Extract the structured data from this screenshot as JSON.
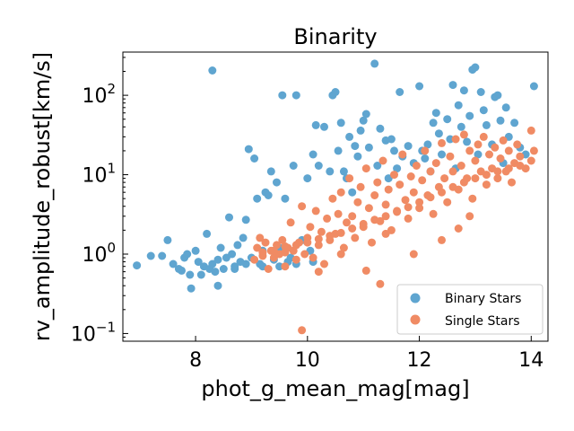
{
  "chart_data": {
    "type": "scatter",
    "title": "Binarity",
    "xlabel": "phot_g_mean_mag[mag]",
    "ylabel": "rv_amplitude_robust[km/s]",
    "xlim": [
      6.7,
      14.3
    ],
    "ylim": [
      0.08,
      350
    ],
    "yscale": "log",
    "grid": false,
    "legend_position": "lower-right",
    "xticks": [
      {
        "value": 8,
        "label": "8"
      },
      {
        "value": 10,
        "label": "10"
      },
      {
        "value": 12,
        "label": "12"
      },
      {
        "value": 14,
        "label": "14"
      }
    ],
    "yticks": [
      {
        "value": 0.1,
        "base": "10",
        "exp": "−1"
      },
      {
        "value": 1,
        "base": "10",
        "exp": "0"
      },
      {
        "value": 10,
        "base": "10",
        "exp": "1"
      },
      {
        "value": 100,
        "base": "10",
        "exp": "2"
      }
    ],
    "series": [
      {
        "name": "Binary Stars",
        "color": "#5fa5d0",
        "points": [
          [
            6.95,
            0.72
          ],
          [
            7.2,
            0.95
          ],
          [
            7.4,
            0.95
          ],
          [
            7.5,
            1.5
          ],
          [
            7.6,
            0.75
          ],
          [
            7.7,
            0.65
          ],
          [
            7.75,
            0.62
          ],
          [
            7.8,
            0.9
          ],
          [
            7.85,
            1.0
          ],
          [
            7.9,
            0.55
          ],
          [
            7.92,
            0.37
          ],
          [
            8.0,
            1.1
          ],
          [
            8.05,
            0.8
          ],
          [
            8.1,
            0.55
          ],
          [
            8.15,
            0.7
          ],
          [
            8.2,
            1.8
          ],
          [
            8.25,
            0.65
          ],
          [
            8.3,
            0.75
          ],
          [
            8.3,
            205
          ],
          [
            8.35,
            0.6
          ],
          [
            8.4,
            0.85
          ],
          [
            8.4,
            0.4
          ],
          [
            8.45,
            1.2
          ],
          [
            8.5,
            0.65
          ],
          [
            8.55,
            0.9
          ],
          [
            8.6,
            2.9
          ],
          [
            8.65,
            1.0
          ],
          [
            8.7,
            0.7
          ],
          [
            8.75,
            1.3
          ],
          [
            8.8,
            0.8
          ],
          [
            8.85,
            1.6
          ],
          [
            8.9,
            2.7
          ],
          [
            8.95,
            21
          ],
          [
            9.0,
            0.9
          ],
          [
            9.05,
            16
          ],
          [
            9.1,
            5.0
          ],
          [
            9.15,
            0.75
          ],
          [
            9.2,
            1.1
          ],
          [
            9.25,
            6.0
          ],
          [
            9.3,
            5.5
          ],
          [
            9.35,
            11
          ],
          [
            9.4,
            0.85
          ],
          [
            9.45,
            8.0
          ],
          [
            9.5,
            1.2
          ],
          [
            9.55,
            100
          ],
          [
            9.6,
            5.0
          ],
          [
            9.65,
            0.8
          ],
          [
            9.7,
            0.9
          ],
          [
            9.75,
            13
          ],
          [
            9.8,
            100
          ],
          [
            9.9,
            1.5
          ],
          [
            10.0,
            9.0
          ],
          [
            10.05,
            1.1
          ],
          [
            10.1,
            18
          ],
          [
            10.15,
            42
          ],
          [
            10.2,
            13
          ],
          [
            10.3,
            40
          ],
          [
            10.4,
            11
          ],
          [
            10.45,
            100
          ],
          [
            10.5,
            110
          ],
          [
            10.55,
            20
          ],
          [
            10.6,
            45
          ],
          [
            10.65,
            11
          ],
          [
            10.7,
            9.0
          ],
          [
            10.75,
            30
          ],
          [
            10.8,
            6.0
          ],
          [
            10.85,
            23
          ],
          [
            10.9,
            17
          ],
          [
            10.95,
            36
          ],
          [
            11.0,
            48
          ],
          [
            11.05,
            58
          ],
          [
            11.1,
            22
          ],
          [
            11.2,
            250
          ],
          [
            11.25,
            13
          ],
          [
            11.3,
            38
          ],
          [
            11.4,
            27
          ],
          [
            11.45,
            9.0
          ],
          [
            11.5,
            28
          ],
          [
            11.55,
            20
          ],
          [
            11.6,
            12
          ],
          [
            11.65,
            110
          ],
          [
            11.7,
            17
          ],
          [
            11.8,
            23
          ],
          [
            11.9,
            14
          ],
          [
            12.0,
            130
          ],
          [
            12.05,
            20
          ],
          [
            12.1,
            16
          ],
          [
            12.15,
            24
          ],
          [
            12.2,
            11
          ],
          [
            12.25,
            45
          ],
          [
            12.3,
            60
          ],
          [
            12.35,
            33
          ],
          [
            12.4,
            18
          ],
          [
            12.5,
            50
          ],
          [
            12.55,
            28
          ],
          [
            12.6,
            135
          ],
          [
            12.65,
            12
          ],
          [
            12.7,
            75
          ],
          [
            12.75,
            40
          ],
          [
            12.8,
            115
          ],
          [
            12.85,
            26
          ],
          [
            12.9,
            55
          ],
          [
            12.95,
            210
          ],
          [
            13.0,
            225
          ],
          [
            13.05,
            18
          ],
          [
            13.1,
            110
          ],
          [
            13.15,
            65
          ],
          [
            13.2,
            42
          ],
          [
            13.3,
            24
          ],
          [
            13.35,
            95
          ],
          [
            13.4,
            100
          ],
          [
            13.45,
            48
          ],
          [
            13.5,
            14
          ],
          [
            13.55,
            70
          ],
          [
            13.6,
            30
          ],
          [
            13.7,
            45
          ],
          [
            13.8,
            22
          ],
          [
            13.9,
            18
          ],
          [
            14.05,
            130
          ],
          [
            8.7,
            0.65
          ],
          [
            8.9,
            0.75
          ],
          [
            9.2,
            0.7
          ],
          [
            9.5,
            0.7
          ],
          [
            9.8,
            0.75
          ],
          [
            10.1,
            0.8
          ]
        ]
      },
      {
        "name": "Single Stars",
        "color": "#f08b64",
        "points": [
          [
            9.05,
            0.85
          ],
          [
            9.1,
            1.2
          ],
          [
            9.15,
            1.6
          ],
          [
            9.2,
            0.95
          ],
          [
            9.25,
            1.4
          ],
          [
            9.3,
            0.65
          ],
          [
            9.35,
            1.1
          ],
          [
            9.4,
            0.9
          ],
          [
            9.45,
            1.3
          ],
          [
            9.5,
            1.0
          ],
          [
            9.55,
            1.5
          ],
          [
            9.6,
            0.7
          ],
          [
            9.65,
            1.2
          ],
          [
            9.7,
            2.5
          ],
          [
            9.75,
            1.1
          ],
          [
            9.8,
            0.85
          ],
          [
            9.85,
            1.4
          ],
          [
            9.9,
            4.0
          ],
          [
            9.9,
            0.11
          ],
          [
            9.95,
            1.0
          ],
          [
            10.0,
            1.6
          ],
          [
            10.05,
            2.2
          ],
          [
            10.1,
            0.9
          ],
          [
            10.15,
            3.5
          ],
          [
            10.2,
            1.3
          ],
          [
            10.25,
            1.9
          ],
          [
            10.3,
            0.75
          ],
          [
            10.35,
            2.8
          ],
          [
            10.4,
            1.5
          ],
          [
            10.45,
            5.0
          ],
          [
            10.5,
            1.8
          ],
          [
            10.55,
            3.2
          ],
          [
            10.6,
            6.0
          ],
          [
            10.65,
            1.2
          ],
          [
            10.7,
            2.5
          ],
          [
            10.75,
            9.0
          ],
          [
            10.8,
            3.0
          ],
          [
            10.85,
            1.6
          ],
          [
            10.9,
            4.5
          ],
          [
            10.95,
            7.0
          ],
          [
            11.0,
            2.2
          ],
          [
            11.05,
            12
          ],
          [
            11.1,
            3.8
          ],
          [
            11.15,
            1.4
          ],
          [
            11.2,
            5.5
          ],
          [
            11.25,
            8.0
          ],
          [
            11.3,
            2.6
          ],
          [
            11.35,
            15
          ],
          [
            11.4,
            4.2
          ],
          [
            11.45,
            6.5
          ],
          [
            11.5,
            2.0
          ],
          [
            11.55,
            10
          ],
          [
            11.6,
            3.5
          ],
          [
            11.65,
            7.5
          ],
          [
            11.7,
            18
          ],
          [
            11.75,
            4.8
          ],
          [
            11.8,
            2.8
          ],
          [
            11.85,
            9.5
          ],
          [
            11.9,
            6.0
          ],
          [
            11.95,
            13
          ],
          [
            12.0,
            3.8
          ],
          [
            12.05,
            8.5
          ],
          [
            12.1,
            20
          ],
          [
            12.15,
            5.5
          ],
          [
            12.2,
            11
          ],
          [
            12.25,
            3.2
          ],
          [
            12.3,
            14
          ],
          [
            12.35,
            7.0
          ],
          [
            12.4,
            25
          ],
          [
            12.45,
            9.0
          ],
          [
            12.5,
            4.5
          ],
          [
            12.55,
            17
          ],
          [
            12.6,
            11
          ],
          [
            12.65,
            28
          ],
          [
            12.7,
            6.5
          ],
          [
            12.75,
            13
          ],
          [
            12.8,
            32
          ],
          [
            12.85,
            9.0
          ],
          [
            12.9,
            20
          ],
          [
            12.95,
            5.0
          ],
          [
            13.0,
            15
          ],
          [
            13.05,
            24
          ],
          [
            13.1,
            11
          ],
          [
            13.15,
            30
          ],
          [
            13.2,
            7.5
          ],
          [
            13.25,
            18
          ],
          [
            13.3,
            12
          ],
          [
            13.35,
            22
          ],
          [
            13.4,
            9.0
          ],
          [
            13.45,
            16
          ],
          [
            13.5,
            27
          ],
          [
            13.55,
            11
          ],
          [
            13.6,
            20
          ],
          [
            13.65,
            8.0
          ],
          [
            13.7,
            14
          ],
          [
            13.75,
            24
          ],
          [
            13.8,
            17
          ],
          [
            13.9,
            12
          ],
          [
            14.0,
            36
          ],
          [
            14.05,
            20
          ],
          [
            11.3,
            0.42
          ],
          [
            11.05,
            0.62
          ],
          [
            11.9,
            1.0
          ],
          [
            12.4,
            1.5
          ],
          [
            12.9,
            3.0
          ],
          [
            10.2,
            0.6
          ],
          [
            9.6,
            1.05
          ],
          [
            10.6,
            1.0
          ],
          [
            11.4,
            1.8
          ],
          [
            12.7,
            2.1
          ],
          [
            9.2,
            1.05
          ],
          [
            9.4,
            1.1
          ],
          [
            9.6,
            1.25
          ],
          [
            9.8,
            1.3
          ],
          [
            10.0,
            1.4
          ],
          [
            10.2,
            1.55
          ],
          [
            10.4,
            1.7
          ],
          [
            10.6,
            1.85
          ],
          [
            10.8,
            2.1
          ],
          [
            11.0,
            2.4
          ],
          [
            11.2,
            2.7
          ],
          [
            11.4,
            3.0
          ],
          [
            11.6,
            3.4
          ],
          [
            11.8,
            3.9
          ],
          [
            12.0,
            4.5
          ],
          [
            12.2,
            5.2
          ],
          [
            12.4,
            6.0
          ],
          [
            12.6,
            7.0
          ],
          [
            12.8,
            8.0
          ],
          [
            13.0,
            9.0
          ],
          [
            13.2,
            10
          ],
          [
            13.4,
            11
          ],
          [
            13.6,
            12
          ],
          [
            13.8,
            13
          ],
          [
            14.0,
            15
          ]
        ]
      }
    ]
  }
}
